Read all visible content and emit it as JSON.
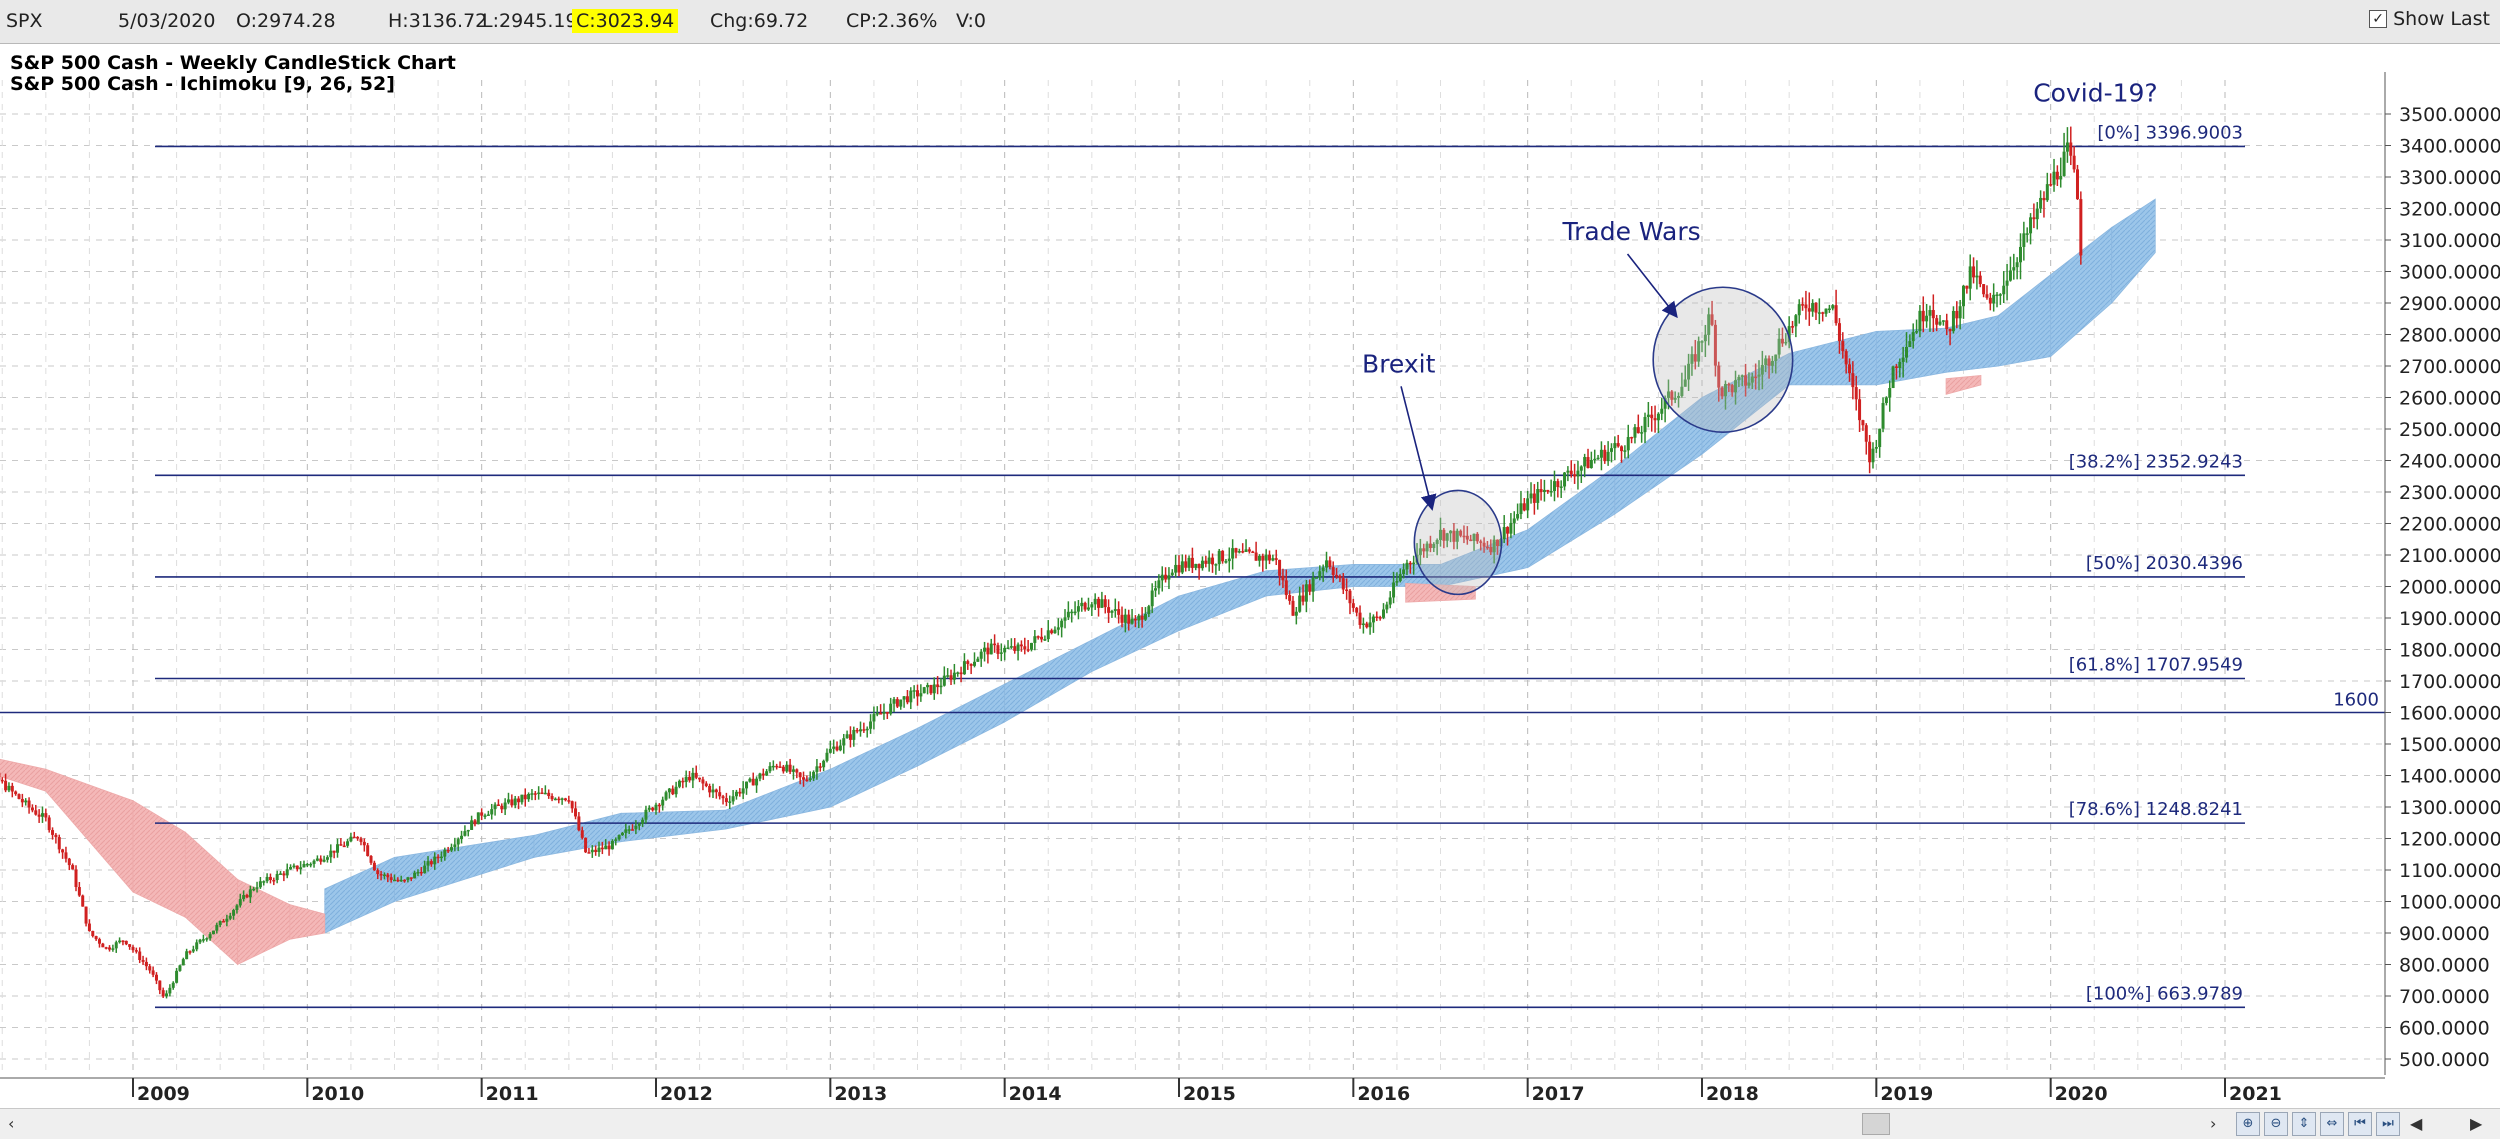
{
  "topbar": {
    "symbol": "SPX",
    "date": "5/03/2020",
    "open": "O:2974.28",
    "high": "H:3136.72",
    "low": "L:2945.19",
    "close": "C:3023.94",
    "change": "Chg:69.72",
    "change_pct": "CP:2.36%",
    "volume": "V:0",
    "show_last_label": "Show Last",
    "show_last_checked": "✓"
  },
  "colors": {
    "candle_up": "#2e8b2e",
    "candle_down": "#d02020",
    "cloud_bullish": "#9cc6ea",
    "cloud_bearish": "#f4b8b8",
    "fib_line": "#1e2a7c",
    "annotation": "#1a237e"
  },
  "chart_data": {
    "type": "candlestick",
    "title": "S&P 500 Cash - Weekly CandleStick Chart",
    "subtitle": "S&P 500 Cash - Ichimoku [9, 26, 52]",
    "ylim": [
      450,
      3600
    ],
    "y_ticks": [
      "500.0000",
      "600.0000",
      "700.0000",
      "800.0000",
      "900.0000",
      "1000.0000",
      "1100.0000",
      "1200.0000",
      "1300.0000",
      "1400.0000",
      "1500.0000",
      "1600.0000",
      "1700.0000",
      "1800.0000",
      "1900.0000",
      "2000.0000",
      "2100.0000",
      "2200.0000",
      "2300.0000",
      "2400.0000",
      "2500.0000",
      "2600.0000",
      "2700.0000",
      "2800.0000",
      "2900.0000",
      "3000.0000",
      "3100.0000",
      "3200.0000",
      "3300.0000",
      "3400.0000",
      "3500.0000"
    ],
    "x_ticks": [
      "2009",
      "2010",
      "2011",
      "2012",
      "2013",
      "2014",
      "2015",
      "2016",
      "2017",
      "2018",
      "2019",
      "2020",
      "2021"
    ],
    "xlim": [
      2007.95,
      2021.2
    ],
    "price_path": [
      [
        2008.0,
        1420
      ],
      [
        2008.2,
        1400
      ],
      [
        2008.4,
        1300
      ],
      [
        2008.5,
        1260
      ],
      [
        2008.65,
        1100
      ],
      [
        2008.75,
        900
      ],
      [
        2008.85,
        850
      ],
      [
        2008.95,
        880
      ],
      [
        2009.1,
        780
      ],
      [
        2009.18,
        690
      ],
      [
        2009.3,
        830
      ],
      [
        2009.5,
        930
      ],
      [
        2009.7,
        1050
      ],
      [
        2009.9,
        1100
      ],
      [
        2010.05,
        1130
      ],
      [
        2010.3,
        1210
      ],
      [
        2010.4,
        1090
      ],
      [
        2010.55,
        1060
      ],
      [
        2010.75,
        1140
      ],
      [
        2011.0,
        1280
      ],
      [
        2011.3,
        1340
      ],
      [
        2011.5,
        1330
      ],
      [
        2011.6,
        1150
      ],
      [
        2011.75,
        1180
      ],
      [
        2012.0,
        1310
      ],
      [
        2012.2,
        1400
      ],
      [
        2012.4,
        1320
      ],
      [
        2012.7,
        1440
      ],
      [
        2012.85,
        1380
      ],
      [
        2013.0,
        1480
      ],
      [
        2013.2,
        1560
      ],
      [
        2013.4,
        1640
      ],
      [
        2013.6,
        1680
      ],
      [
        2013.9,
        1800
      ],
      [
        2014.1,
        1800
      ],
      [
        2014.3,
        1880
      ],
      [
        2014.5,
        1960
      ],
      [
        2014.75,
        1880
      ],
      [
        2014.95,
        2060
      ],
      [
        2015.3,
        2100
      ],
      [
        2015.55,
        2090
      ],
      [
        2015.65,
        1920
      ],
      [
        2015.85,
        2090
      ],
      [
        2016.05,
        1880
      ],
      [
        2016.15,
        1900
      ],
      [
        2016.3,
        2070
      ],
      [
        2016.5,
        2170
      ],
      [
        2016.8,
        2130
      ],
      [
        2017.0,
        2270
      ],
      [
        2017.3,
        2380
      ],
      [
        2017.6,
        2470
      ],
      [
        2017.9,
        2650
      ],
      [
        2018.05,
        2860
      ],
      [
        2018.1,
        2620
      ],
      [
        2018.3,
        2660
      ],
      [
        2018.6,
        2900
      ],
      [
        2018.75,
        2880
      ],
      [
        2018.85,
        2650
      ],
      [
        2018.97,
        2400
      ],
      [
        2019.1,
        2700
      ],
      [
        2019.3,
        2900
      ],
      [
        2019.4,
        2800
      ],
      [
        2019.55,
        3000
      ],
      [
        2019.65,
        2880
      ],
      [
        2019.85,
        3100
      ],
      [
        2020.0,
        3280
      ],
      [
        2020.1,
        3380
      ],
      [
        2020.15,
        3260
      ],
      [
        2020.18,
        3020
      ]
    ],
    "ichimoku_cloud": {
      "bullish_band": [
        [
          2010.1,
          900,
          1040
        ],
        [
          2010.5,
          1000,
          1140
        ],
        [
          2011.3,
          1140,
          1210
        ],
        [
          2011.8,
          1190,
          1280
        ],
        [
          2012.4,
          1230,
          1290
        ],
        [
          2013.0,
          1300,
          1420
        ],
        [
          2013.5,
          1430,
          1550
        ],
        [
          2014.0,
          1570,
          1690
        ],
        [
          2014.5,
          1730,
          1830
        ],
        [
          2015.0,
          1860,
          1970
        ],
        [
          2015.5,
          1970,
          2050
        ],
        [
          2016.0,
          2000,
          2070
        ],
        [
          2016.5,
          2000,
          2070
        ],
        [
          2017.0,
          2060,
          2180
        ],
        [
          2017.5,
          2230,
          2380
        ],
        [
          2018.0,
          2420,
          2600
        ],
        [
          2018.5,
          2640,
          2740
        ],
        [
          2019.0,
          2640,
          2810
        ],
        [
          2019.4,
          2680,
          2820
        ],
        [
          2019.7,
          2700,
          2860
        ],
        [
          2020.0,
          2730,
          2990
        ],
        [
          2020.35,
          2900,
          3140
        ],
        [
          2020.6,
          3060,
          3230
        ]
      ],
      "bearish_band": [
        [
          2008.0,
          1440,
          1480
        ],
        [
          2008.5,
          1350,
          1420
        ],
        [
          2009.0,
          1030,
          1320
        ],
        [
          2009.3,
          950,
          1220
        ],
        [
          2009.6,
          800,
          1070
        ],
        [
          2009.9,
          880,
          990
        ],
        [
          2010.1,
          900,
          960
        ],
        [
          2011.0,
          1090,
          1130
        ],
        [
          2012.1,
          1240,
          1270
        ],
        [
          2016.3,
          1950,
          2010
        ],
        [
          2016.7,
          1960,
          2000
        ],
        [
          2019.4,
          2610,
          2660
        ],
        [
          2019.6,
          2640,
          2670
        ]
      ]
    },
    "fib_levels": [
      {
        "label": "[0%] 3396.9003",
        "value": 3396.9003
      },
      {
        "label": "[38.2%] 2352.9243",
        "value": 2352.9243
      },
      {
        "label": "[50%] 2030.4396",
        "value": 2030.4396
      },
      {
        "label": "[61.8%] 1707.9549",
        "value": 1707.9549
      },
      {
        "label": "[78.6%] 1248.8241",
        "value": 1248.8241
      },
      {
        "label": "[100%] 663.9789",
        "value": 663.9789
      }
    ],
    "horizontal_line": {
      "label": "1600",
      "value": 1600
    },
    "annotations": [
      {
        "text": "Covid-19?",
        "x": 2019.9,
        "y": 3540
      },
      {
        "text": "Trade Wars",
        "x": 2017.2,
        "y": 3100,
        "arrow_to_x": 2017.85,
        "arrow_to_y": 2860
      },
      {
        "text": "Brexit",
        "x": 2016.05,
        "y": 2680,
        "arrow_to_x": 2016.45,
        "arrow_to_y": 2250
      }
    ],
    "highlight_circles": [
      {
        "cx": 2016.6,
        "cy": 2140,
        "rx": 0.25,
        "ry": 165
      },
      {
        "cx": 2018.12,
        "cy": 2720,
        "rx": 0.4,
        "ry": 230
      }
    ]
  }
}
